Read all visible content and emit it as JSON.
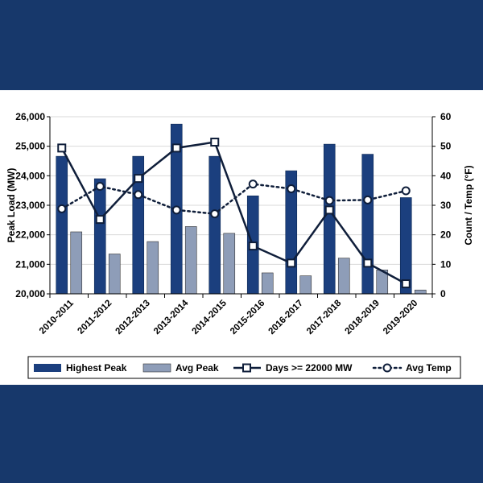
{
  "chart_data": {
    "type": "bar",
    "title": "",
    "xlabel": "",
    "ylabel": "Peak Load (MW)",
    "y2label": "Count / Temp (°F)",
    "ylim": [
      20000,
      26000
    ],
    "y2lim": [
      0,
      60
    ],
    "yticks": [
      "20,000",
      "21,000",
      "22,000",
      "23,000",
      "24,000",
      "25,000",
      "26,000"
    ],
    "y2ticks": [
      "0",
      "10",
      "20",
      "30",
      "40",
      "50",
      "60"
    ],
    "grid": true,
    "legend_position": "bottom",
    "categories": [
      "2010-2011",
      "2011-2012",
      "2012-2013",
      "2013-2014",
      "2014-2015",
      "2015-2016",
      "2016-2017",
      "2017-2018",
      "2018-2019",
      "2019-2020"
    ],
    "series": [
      {
        "name": "Highest Peak",
        "kind": "bar",
        "axis": "left",
        "color": "#1b3f7e",
        "values": [
          24660,
          23900,
          24660,
          25750,
          24660,
          23320,
          24170,
          25070,
          24730,
          23260
        ]
      },
      {
        "name": "Avg Peak",
        "kind": "bar",
        "axis": "left",
        "color": "#8e9db8",
        "values": [
          22100,
          21350,
          21770,
          22280,
          22050,
          20710,
          20610,
          21210,
          20810,
          20130
        ]
      },
      {
        "name": "Days >= 22000 MW",
        "kind": "line",
        "axis": "right",
        "color": "#0f1e3a",
        "values": [
          49.4,
          25.2,
          39.1,
          49.4,
          51.4,
          16.2,
          10.4,
          28.4,
          10.4,
          3.4
        ]
      },
      {
        "name": "Avg Temp",
        "kind": "dotted-line",
        "axis": "right",
        "color": "#0f1e3a",
        "values": [
          28.8,
          36.4,
          33.6,
          28.4,
          27.1,
          37.2,
          35.6,
          31.6,
          31.8,
          34.9
        ]
      }
    ]
  }
}
